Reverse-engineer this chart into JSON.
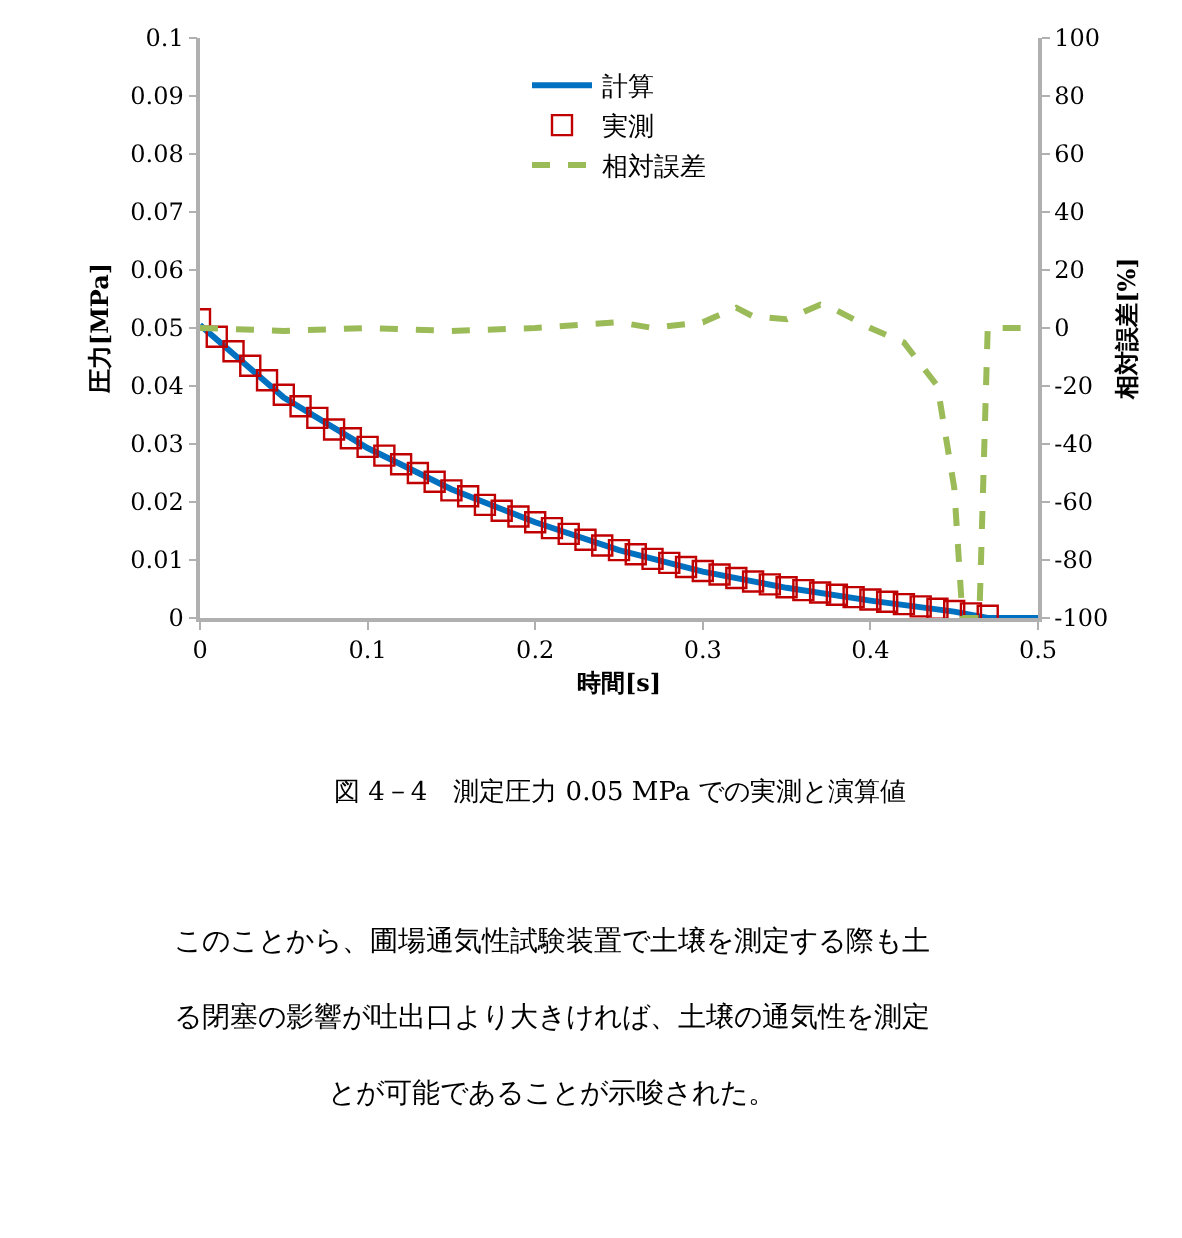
{
  "chart_data": {
    "type": "line",
    "xlabel": "時間[s]",
    "ylabel": "圧力[MPa]",
    "y2label": "相対誤差[%]",
    "xlim": [
      0,
      0.5
    ],
    "xticks": [
      0,
      0.1,
      0.2,
      0.3,
      0.4,
      0.5
    ],
    "ylim": [
      0,
      0.1
    ],
    "yticks": [
      0,
      0.01,
      0.02,
      0.03,
      0.04,
      0.05,
      0.06,
      0.07,
      0.08,
      0.09,
      0.1
    ],
    "y2lim": [
      -100,
      100
    ],
    "y2ticks": [
      -100,
      -80,
      -60,
      -40,
      -20,
      0,
      20,
      40,
      60,
      80,
      100
    ],
    "legend": "top",
    "series": [
      {
        "name": "計算",
        "color": "#0070c0",
        "line_style": "solid",
        "marker": "none",
        "x": [
          0,
          0.05,
          0.1,
          0.15,
          0.2,
          0.25,
          0.3,
          0.35,
          0.4,
          0.45,
          0.47,
          0.5
        ],
        "values": [
          0.0505,
          0.038,
          0.0293,
          0.0222,
          0.0165,
          0.0117,
          0.008,
          0.0052,
          0.003,
          0.0011,
          0,
          0
        ]
      },
      {
        "name": "実測",
        "type": "scatter",
        "color": "#c00000",
        "marker": "square",
        "x": [
          0,
          0.01,
          0.02,
          0.03,
          0.04,
          0.05,
          0.06,
          0.07,
          0.08,
          0.09,
          0.1,
          0.11,
          0.12,
          0.13,
          0.14,
          0.15,
          0.16,
          0.17,
          0.18,
          0.19,
          0.2,
          0.21,
          0.22,
          0.23,
          0.24,
          0.25,
          0.26,
          0.27,
          0.28,
          0.29,
          0.3,
          0.31,
          0.32,
          0.33,
          0.34,
          0.35,
          0.36,
          0.37,
          0.38,
          0.39,
          0.4,
          0.41,
          0.42,
          0.43,
          0.44,
          0.45,
          0.46,
          0.47
        ],
        "values": [
          0.0515,
          0.0485,
          0.046,
          0.0435,
          0.041,
          0.0385,
          0.0365,
          0.0345,
          0.0325,
          0.031,
          0.0295,
          0.028,
          0.0265,
          0.025,
          0.0235,
          0.022,
          0.021,
          0.0195,
          0.0185,
          0.0175,
          0.0165,
          0.0155,
          0.0145,
          0.0135,
          0.0125,
          0.0117,
          0.011,
          0.0102,
          0.0095,
          0.0088,
          0.0081,
          0.0075,
          0.0069,
          0.0063,
          0.0058,
          0.0053,
          0.0048,
          0.0044,
          0.004,
          0.0036,
          0.0032,
          0.0028,
          0.0024,
          0.002,
          0.0016,
          0.0012,
          0.0008,
          0.0004
        ]
      },
      {
        "name": "相対誤差",
        "axis": "y2",
        "color": "#9bbb59",
        "line_style": "dashed",
        "marker": "none",
        "x": [
          0,
          0.05,
          0.1,
          0.15,
          0.2,
          0.25,
          0.27,
          0.3,
          0.32,
          0.33,
          0.35,
          0.37,
          0.38,
          0.4,
          0.42,
          0.44,
          0.45,
          0.455,
          0.465,
          0.47,
          0.48,
          0.5
        ],
        "values": [
          0,
          -1,
          0,
          -1,
          0,
          2,
          0,
          2,
          7,
          4,
          3,
          8,
          6,
          0,
          -5,
          -20,
          -55,
          -100,
          -100,
          0,
          0,
          0
        ]
      }
    ],
    "annotations": [
      "図 4－4　測定圧力 0.05 MPa での実測と演算値",
      "このことから、圃場通気性試験装置で土壌を測定する際も土",
      "る閉塞の影響が吐出口より大きければ、土壌の通気性を測定",
      "とが可能であることが示唆された。"
    ]
  }
}
